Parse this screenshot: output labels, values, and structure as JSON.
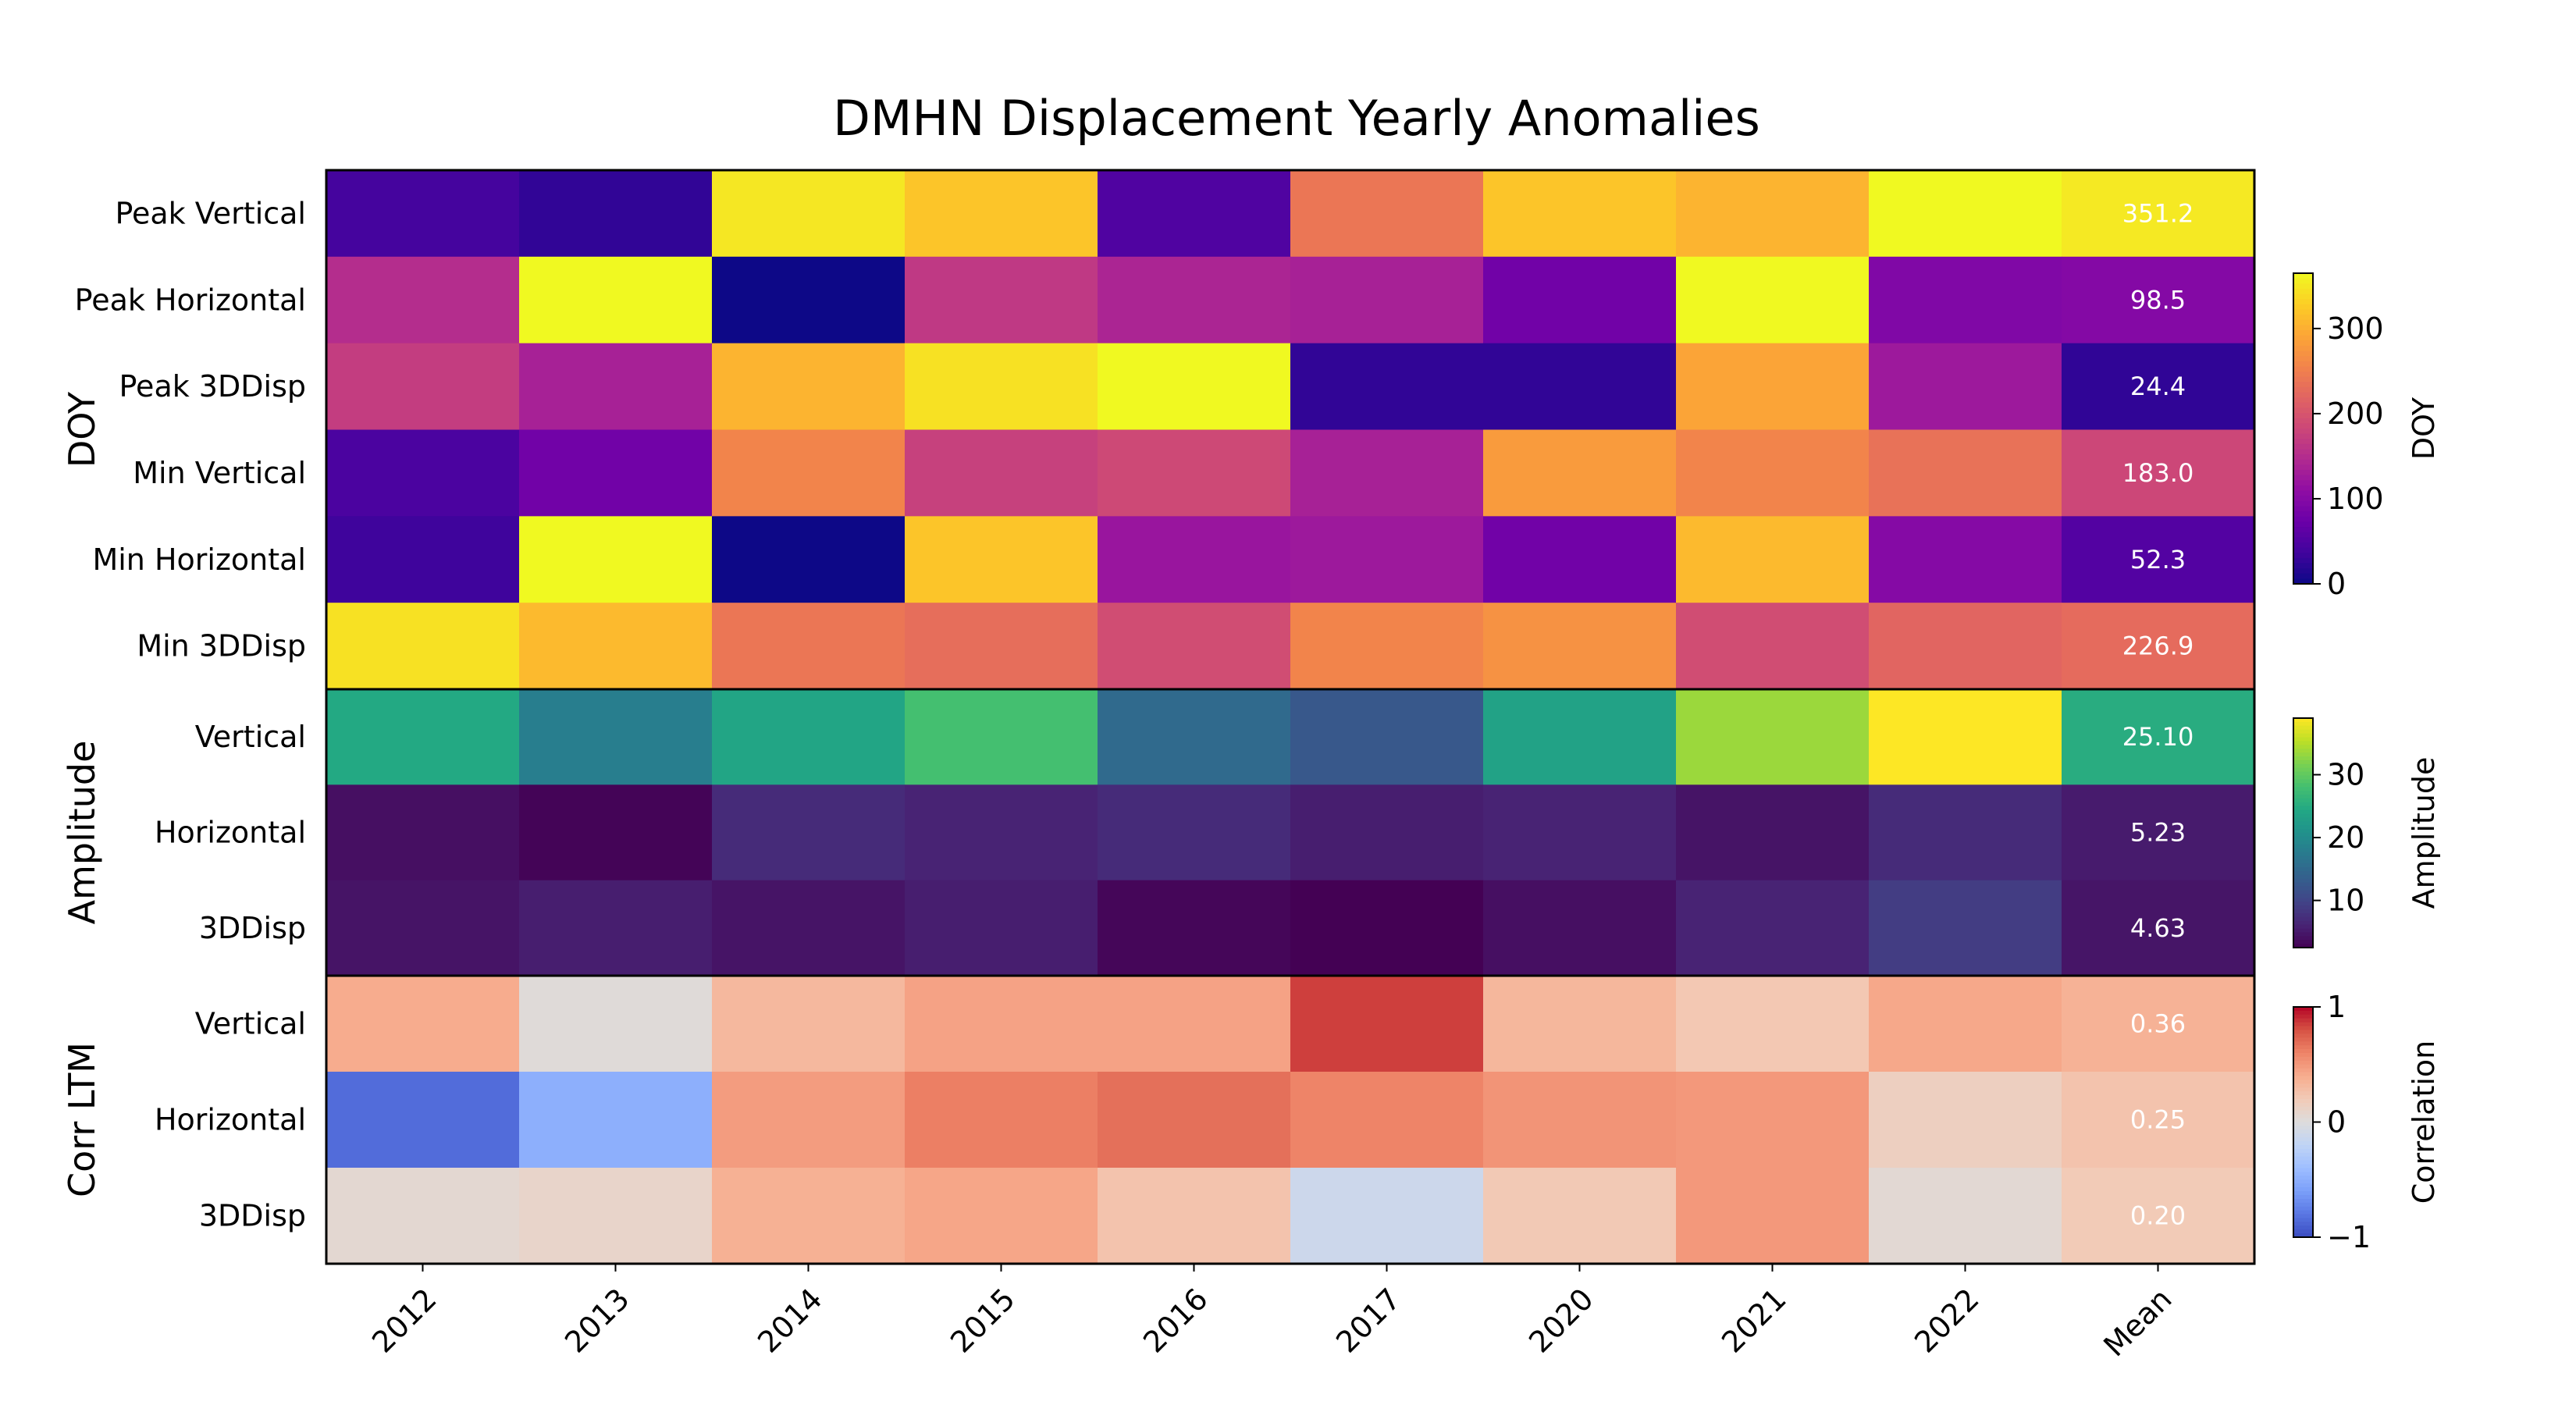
{
  "chart_data": {
    "type": "heatmap",
    "title": "DMHN Displacement Yearly Anomalies",
    "columns": [
      "2012",
      "2013",
      "2014",
      "2015",
      "2016",
      "2017",
      "2020",
      "2021",
      "2022",
      "Mean"
    ],
    "panels": [
      {
        "group_label": "DOY",
        "colormap": "plasma",
        "vmin": 0,
        "vmax": 365,
        "colorbar_label": "DOY",
        "colorbar_ticks": [
          0,
          100,
          200,
          300
        ],
        "colorbar_tick_labels": [
          "0",
          "100",
          "200",
          "300"
        ],
        "rows": [
          {
            "label": "Peak Vertical",
            "values": [
              40,
              25,
              350,
              320,
              50,
              240,
              320,
              305,
              365,
              351.2
            ],
            "mean_label": "351.2"
          },
          {
            "label": "Peak Horizontal",
            "values": [
              150,
              365,
              0,
              165,
              140,
              135,
              80,
              365,
              95,
              98.5
            ],
            "mean_label": "98.5"
          },
          {
            "label": "Peak 3DDisp",
            "values": [
              170,
              135,
              305,
              345,
              365,
              25,
              25,
              290,
              125,
              24.4
            ],
            "mean_label": "24.4"
          },
          {
            "label": "Min Vertical",
            "values": [
              45,
              80,
              255,
              175,
              185,
              135,
              280,
              255,
              235,
              183.0
            ],
            "mean_label": "183.0"
          },
          {
            "label": "Min Horizontal",
            "values": [
              35,
              365,
              0,
              320,
              120,
              125,
              80,
              310,
              100,
              52.3
            ],
            "mean_label": "52.3"
          },
          {
            "label": "Min 3DDisp",
            "values": [
              345,
              310,
              240,
              230,
              190,
              255,
              270,
              190,
              220,
              226.9
            ],
            "mean_label": "226.9"
          }
        ]
      },
      {
        "group_label": "Amplitude",
        "colormap": "viridis",
        "vmin": 2.5,
        "vmax": 39,
        "colorbar_label": "Amplitude",
        "colorbar_ticks": [
          10,
          20,
          30
        ],
        "colorbar_tick_labels": [
          "10",
          "20",
          "30"
        ],
        "rows": [
          {
            "label": "Vertical",
            "values": [
              24.5,
              18,
              24,
              28,
              15,
              12.5,
              23.5,
              33.5,
              39,
              25.1
            ],
            "mean_label": "25.10"
          },
          {
            "label": "Horizontal",
            "values": [
              4,
              2.8,
              7,
              6,
              7,
              5.5,
              6,
              4.5,
              7,
              5.23
            ],
            "mean_label": "5.23"
          },
          {
            "label": "3DDisp",
            "values": [
              4.5,
              5.5,
              4.5,
              5.5,
              3,
              2.5,
              4,
              6,
              9,
              4.63
            ],
            "mean_label": "4.63"
          }
        ]
      },
      {
        "group_label": "Corr LTM",
        "colormap": "coolwarm",
        "vmin": -1,
        "vmax": 1,
        "colorbar_label": "Correlation",
        "colorbar_ticks": [
          -1,
          0,
          1
        ],
        "colorbar_tick_labels": [
          "−1",
          "0",
          "1"
        ],
        "rows": [
          {
            "label": "Vertical",
            "values": [
              0.4,
              0.02,
              0.32,
              0.45,
              0.45,
              0.85,
              0.33,
              0.22,
              0.42,
              0.36
            ],
            "mean_label": "0.36"
          },
          {
            "label": "Horizontal",
            "values": [
              -0.85,
              -0.5,
              0.48,
              0.62,
              0.68,
              0.6,
              0.52,
              0.5,
              0.15,
              0.25
            ],
            "mean_label": "0.25"
          },
          {
            "label": "3DDisp",
            "values": [
              0.06,
              0.1,
              0.37,
              0.43,
              0.25,
              -0.12,
              0.21,
              0.5,
              0.05,
              0.2
            ],
            "mean_label": "0.20"
          }
        ]
      }
    ]
  }
}
